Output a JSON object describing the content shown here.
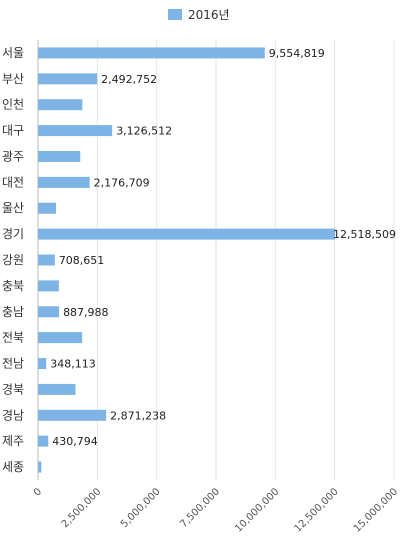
{
  "chart_data": {
    "type": "bar",
    "orientation": "horizontal",
    "title": "",
    "xlabel": "",
    "ylabel": "",
    "xlim": [
      0,
      15000000
    ],
    "x_ticks": [
      "0",
      "2,500,000",
      "5,000,000",
      "7,500,000",
      "10,000,000",
      "12,500,000",
      "15,000,000"
    ],
    "grid": true,
    "legend_position": "top-center",
    "color": "#7EB3E6",
    "categories": [
      "서울",
      "부산",
      "인천",
      "대구",
      "광주",
      "대전",
      "울산",
      "경기",
      "강원",
      "충북",
      "충남",
      "전북",
      "전남",
      "경북",
      "경남",
      "제주",
      "세종"
    ],
    "series": [
      {
        "name": "2016년",
        "values": [
          9554819,
          2492752,
          1870000,
          3126512,
          1780000,
          2176709,
          760000,
          12518509,
          708651,
          880000,
          887988,
          1860000,
          348113,
          1580000,
          2871238,
          430794,
          140000
        ]
      }
    ],
    "data_labels": [
      "9,554,819",
      "2,492,752",
      "",
      "3,126,512",
      "",
      "2,176,709",
      "",
      "12,518,509",
      "708,651",
      "",
      "887,988",
      "",
      "348,113",
      "",
      "2,871,238",
      "430,794",
      ""
    ]
  }
}
